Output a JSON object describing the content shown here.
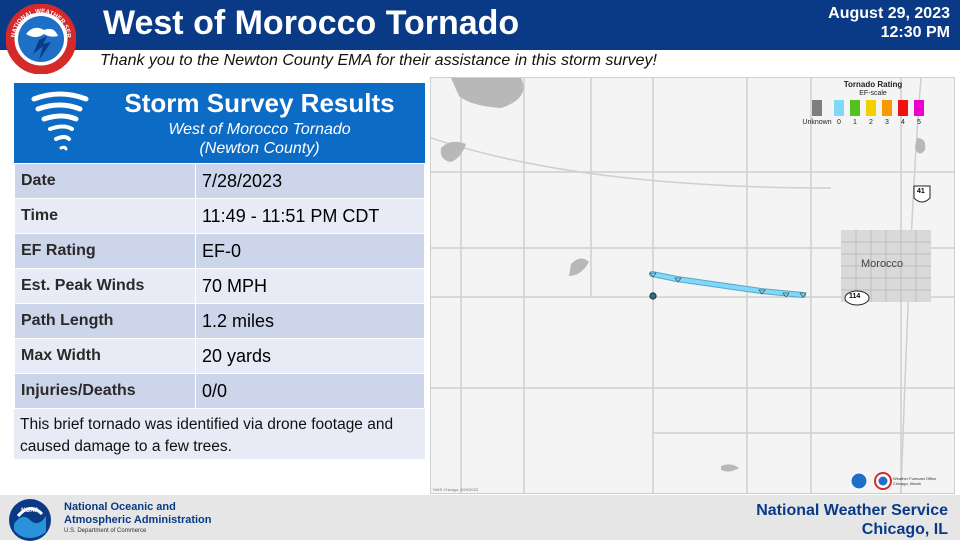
{
  "header": {
    "title": "West of Morocco Tornado",
    "date": "August 29, 2023",
    "time": "12:30 PM",
    "nws_logo_text": "NATIONAL WEATHER SERVICE",
    "background_color": "#0a3a86"
  },
  "subtitle": "Thank you to the Newton County EMA for their assistance in this storm survey!",
  "panel": {
    "icon": "tornado-icon",
    "title": "Storm Survey Results",
    "sub1": "West of Morocco Tornado",
    "sub2": "(Newton County)",
    "header_color": "#0b6bc5",
    "rows": [
      {
        "label": "Date",
        "value": "7/28/2023"
      },
      {
        "label": "Time",
        "value": "11:49 - 11:51 PM CDT"
      },
      {
        "label": "EF Rating",
        "value": "EF-0"
      },
      {
        "label": "Est. Peak Winds",
        "value": "70 MPH"
      },
      {
        "label": "Path Length",
        "value": "1.2 miles"
      },
      {
        "label": "Max Width",
        "value": "20 yards"
      },
      {
        "label": "Injuries/Deaths",
        "value": "0/0"
      }
    ],
    "description": "This brief tornado was identified via drone footage and caused damage to a few trees."
  },
  "map": {
    "town": "Morocco",
    "routes": [
      "41",
      "114"
    ],
    "credit": "NWS Chicago, 8/29/2023",
    "legend": {
      "title": "Tornado Rating",
      "subtitle": "EF-scale",
      "items": [
        {
          "label": "Unknown",
          "color": "#7f7f7f"
        },
        {
          "label": "0",
          "color": "#7fd8f7"
        },
        {
          "label": "1",
          "color": "#55c21b"
        },
        {
          "label": "2",
          "color": "#f2d000"
        },
        {
          "label": "3",
          "color": "#f59a00"
        },
        {
          "label": "4",
          "color": "#ee1111"
        },
        {
          "label": "5",
          "color": "#ee00cc"
        }
      ]
    },
    "path_color": "#7fd8f7",
    "office_logo_text": "Weather Forecast Office Chicago, Illinois"
  },
  "footer": {
    "noaa_line1": "National Oceanic and",
    "noaa_line2": "Atmospheric Administration",
    "noaa_line3": "U.S. Department of Commerce",
    "nws_line1": "National Weather Service",
    "nws_line2": "Chicago, IL"
  }
}
